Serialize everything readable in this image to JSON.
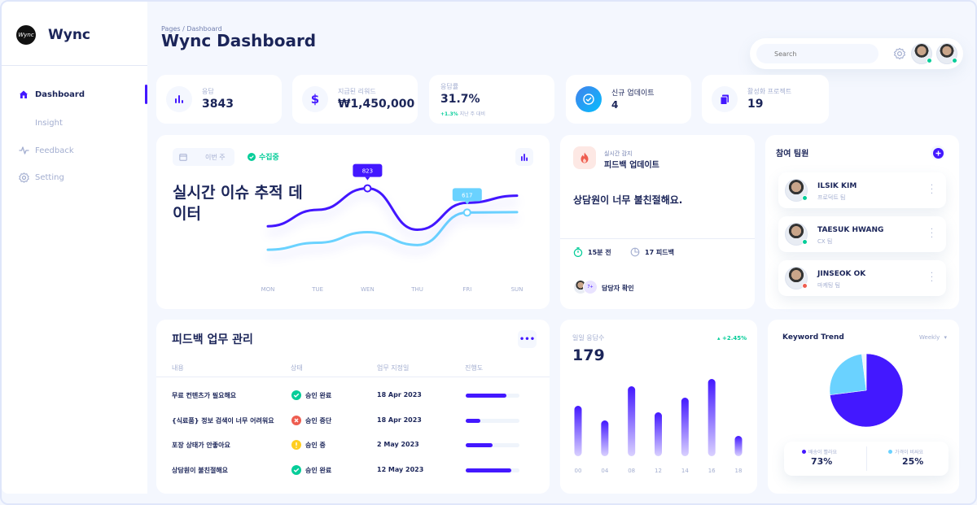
{
  "sidebar": {
    "logo_text": "Wync",
    "brand": "Wync",
    "items": [
      {
        "label": "Dashboard",
        "icon": "home-icon"
      },
      {
        "label": "Insight",
        "icon": ""
      },
      {
        "label": "Feedback",
        "icon": "pulse-icon"
      },
      {
        "label": "Setting",
        "icon": "gear-icon"
      }
    ]
  },
  "header": {
    "breadcrumb": "Pages / Dashboard",
    "title": "Wync Dashboard"
  },
  "topbar": {
    "search_placeholder": "Search"
  },
  "stats": [
    {
      "label": "응답",
      "value": "3843"
    },
    {
      "label": "지급된 리워드",
      "value": "₩1,450,000"
    },
    {
      "label": "응답률",
      "value": "31.7%",
      "delta": "+1.3%",
      "delta_note": "지난 주 대비"
    },
    {
      "label": "신규 업데이트",
      "value": "4"
    },
    {
      "label": "활성화 프로젝트",
      "value": "19"
    }
  ],
  "issue_chart": {
    "week_label": "이번 주",
    "status": "수집중",
    "title": "실시간 이슈 추적 데이터",
    "chart_data": {
      "type": "line",
      "categories": [
        "MON",
        "TUE",
        "WEN",
        "THU",
        "FRI",
        "SUN"
      ],
      "series": [
        {
          "values": [
            500,
            640,
            823,
            470,
            700,
            760
          ],
          "color": "#4318ff"
        },
        {
          "values": [
            300,
            360,
            450,
            340,
            617,
            620
          ],
          "color": "#6ad2ff"
        }
      ],
      "annotations": [
        {
          "category": "WEN",
          "value": 823,
          "label": "823"
        },
        {
          "category": "FRI",
          "value": 617,
          "label": "617"
        }
      ],
      "ylim": [
        100,
        1000
      ]
    }
  },
  "feedback_update": {
    "kicker": "실시간 감지",
    "title": "피드백 업데이트",
    "message": "상담원이 너무 불친절해요.",
    "time": "15분 전",
    "count": "17 피드백",
    "assignee_more": "7+",
    "assignee_label": "담당자 확인"
  },
  "team": {
    "title": "참여 팀원",
    "members": [
      {
        "name": "ILSIK KIM",
        "team": "프로덕트 팀",
        "status_color": "#05cd99"
      },
      {
        "name": "TAESUK HWANG",
        "team": "CX 팀",
        "status_color": "#05cd99"
      },
      {
        "name": "JINSEOK OK",
        "team": "마케팅 팀",
        "status_color": "#ee5d50"
      }
    ]
  },
  "tasks": {
    "title": "피드백 업무 관리",
    "headers": [
      "내용",
      "상태",
      "업무 지정일",
      "진행도"
    ],
    "rows": [
      {
        "content": "무료 컨텐츠가 필요해요",
        "status": "승인 완료",
        "status_kind": "done",
        "date": "18 Apr 2023",
        "progress": 0.75
      },
      {
        "content": "{식료품} 정보 검색이 너무 어려워요",
        "status": "승인 중단",
        "status_kind": "stopped",
        "date": "18 Apr 2023",
        "progress": 0.28
      },
      {
        "content": "포장 상태가 안좋아요",
        "status": "승인 중",
        "status_kind": "pending",
        "date": "2 May 2023",
        "progress": 0.5
      },
      {
        "content": "상담원이 불친절해요",
        "status": "승인 완료",
        "status_kind": "done",
        "date": "12 May 2023",
        "progress": 0.85
      }
    ]
  },
  "daily": {
    "label": "일일 응답수",
    "delta": "+2.45%",
    "value": "179",
    "chart_data": {
      "type": "bar",
      "categories": [
        "00",
        "04",
        "08",
        "12",
        "14",
        "16",
        "18"
      ],
      "values": [
        62,
        44,
        86,
        54,
        72,
        95,
        25
      ],
      "ylim": [
        0,
        100
      ]
    }
  },
  "keyword": {
    "title": "Keyword Trend",
    "period": "Weekly",
    "chart_data": {
      "type": "pie",
      "slices": [
        {
          "label": "배송이 빨라요",
          "value": 73,
          "color": "#4318ff"
        },
        {
          "label": "가격이 비싸요",
          "value": 25,
          "color": "#6ad2ff"
        },
        {
          "label": "",
          "value": 2,
          "color": "#eff4fb"
        }
      ]
    },
    "legend": [
      {
        "label": "배송이 빨라요",
        "value": "73%",
        "color": "#4318ff"
      },
      {
        "label": "가격이 비싸요",
        "value": "25%",
        "color": "#6ad2ff"
      }
    ]
  }
}
